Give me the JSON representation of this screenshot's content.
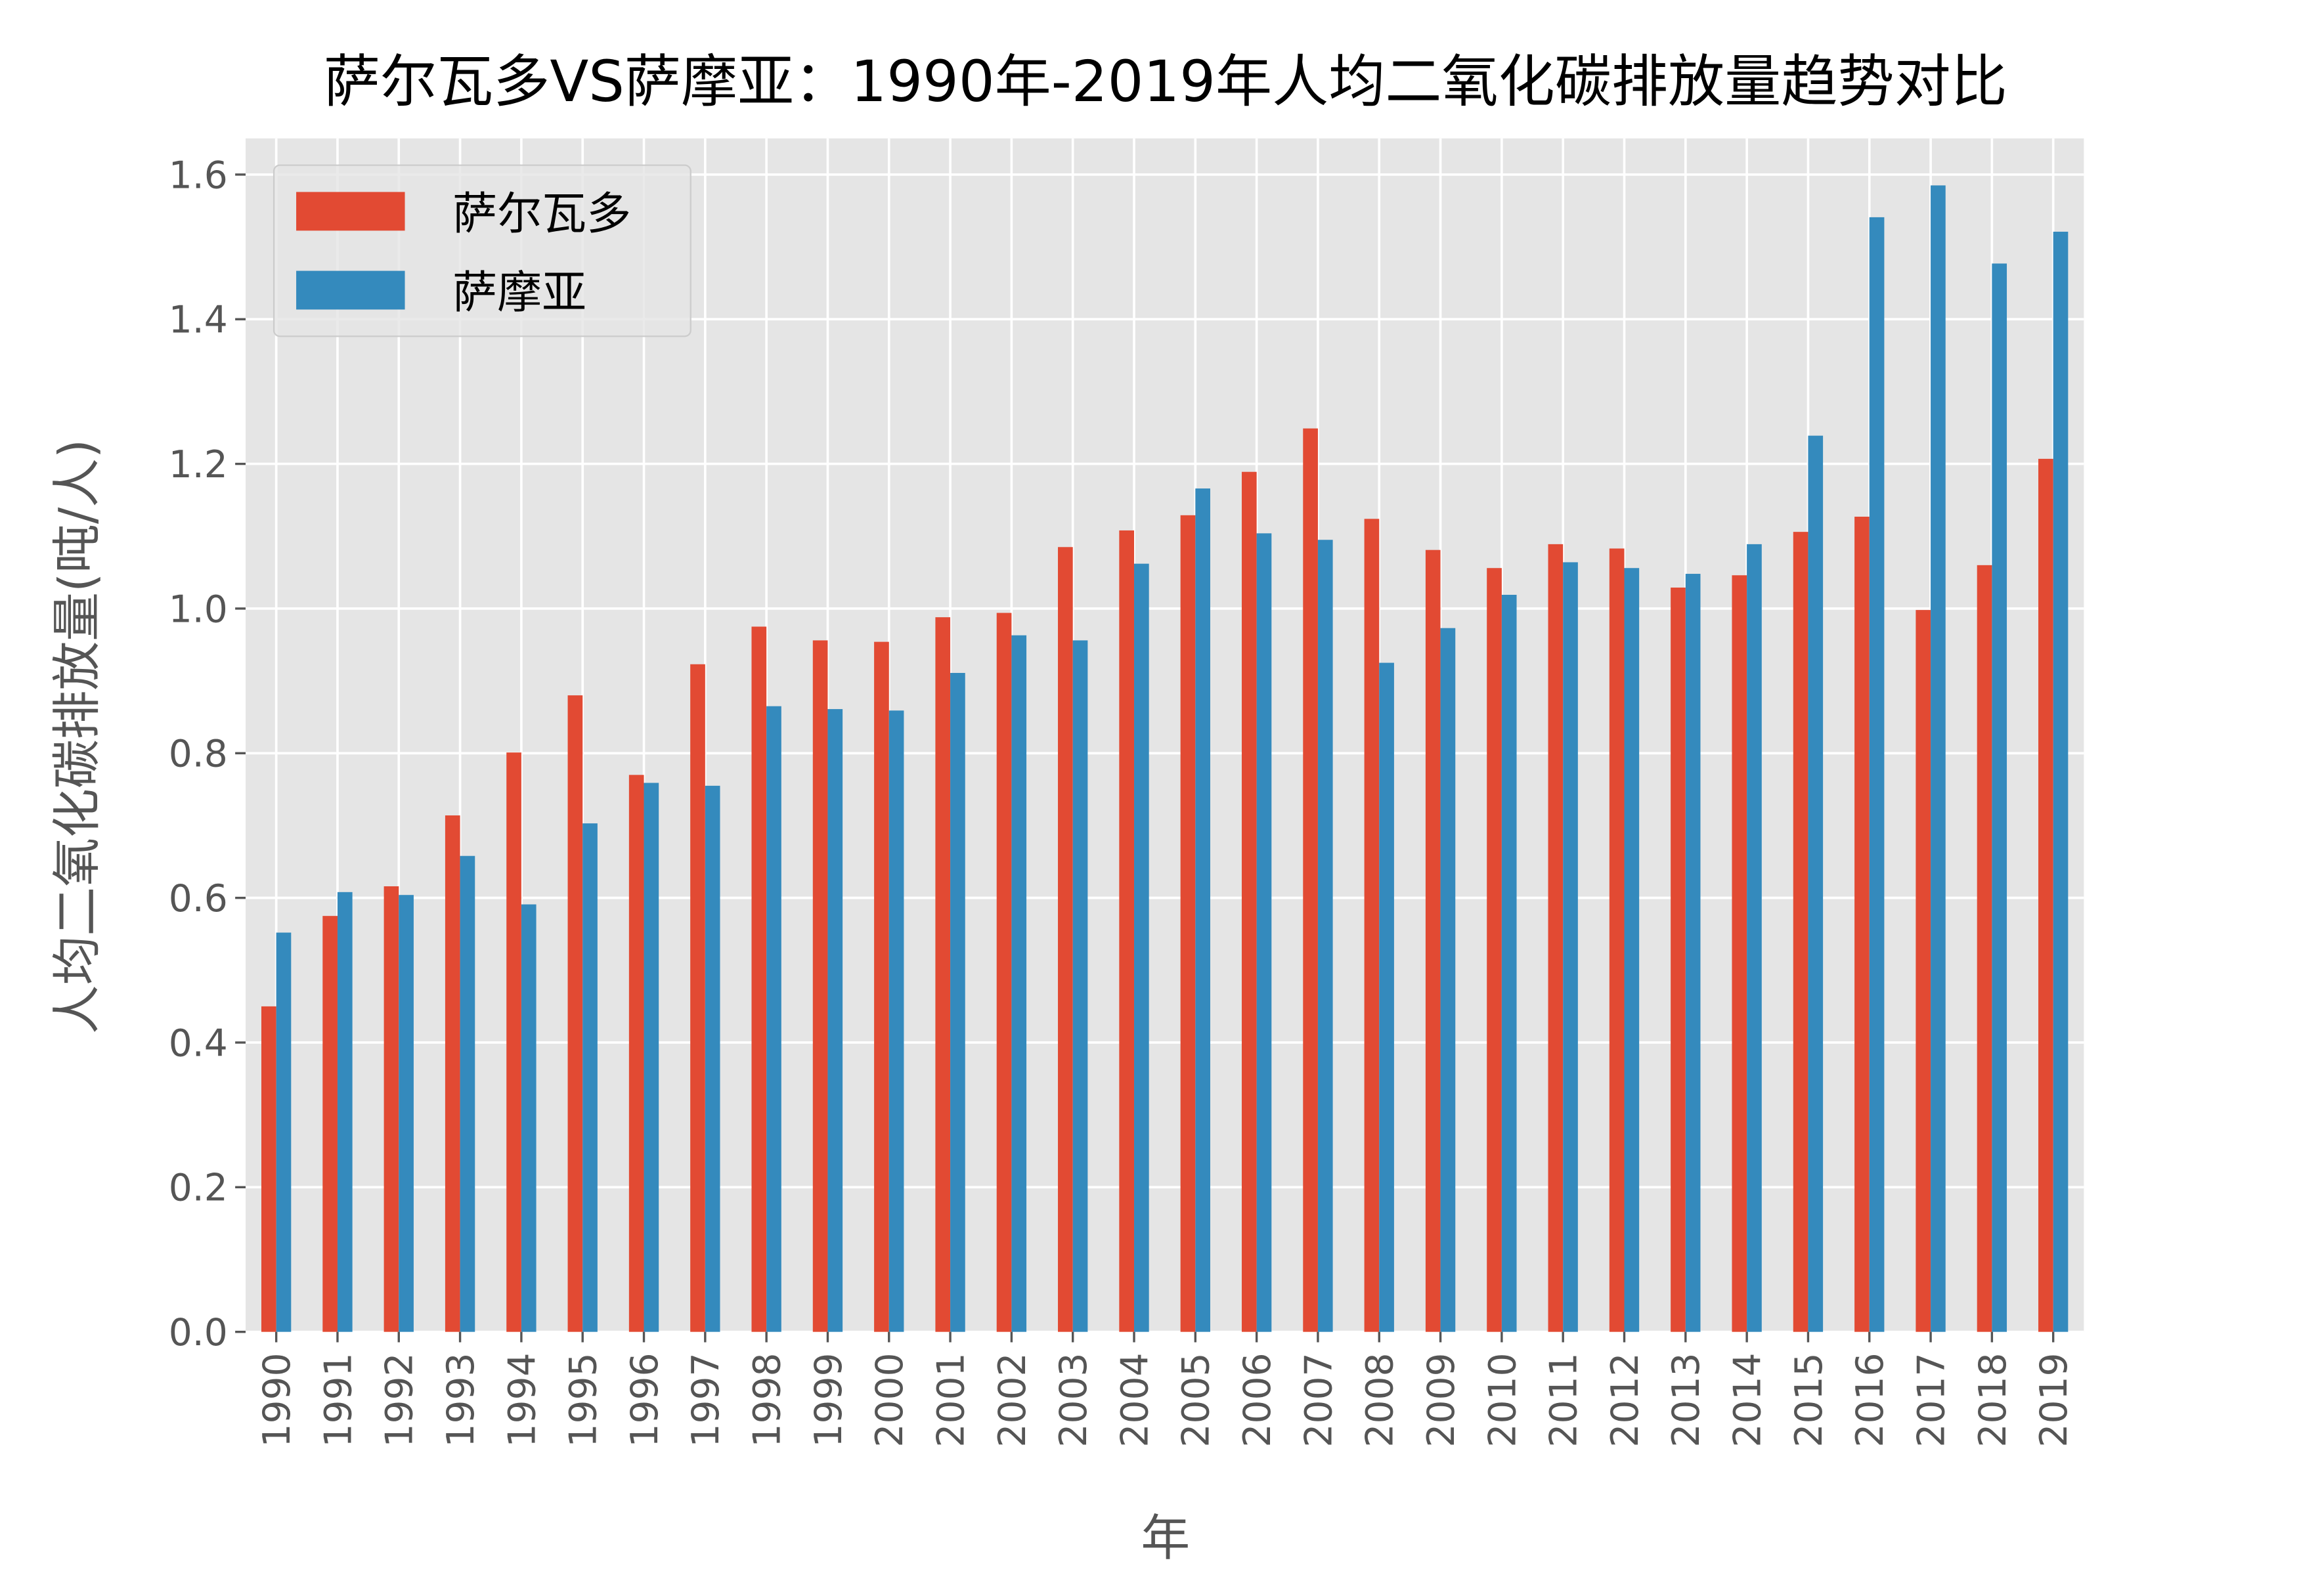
{
  "chart_data": {
    "type": "bar",
    "title": "萨尔瓦多VS萨摩亚：1990年-2019年人均二氧化碳排放量趋势对比",
    "xlabel": "年",
    "ylabel": "人均二氧化碳排放量(吨/人)",
    "ylim": [
      0,
      1.65
    ],
    "yticks": [
      "0.0",
      "0.2",
      "0.4",
      "0.6",
      "0.8",
      "1.0",
      "1.2",
      "1.4",
      "1.6"
    ],
    "grid": true,
    "legend_position": "top-left",
    "categories": [
      "1990",
      "1991",
      "1992",
      "1993",
      "1994",
      "1995",
      "1996",
      "1997",
      "1998",
      "1999",
      "2000",
      "2001",
      "2002",
      "2003",
      "2004",
      "2005",
      "2006",
      "2007",
      "2008",
      "2009",
      "2010",
      "2011",
      "2012",
      "2013",
      "2014",
      "2015",
      "2016",
      "2017",
      "2018",
      "2019"
    ],
    "series": [
      {
        "name": "萨尔瓦多",
        "color": "#E24A33",
        "values": [
          0.45,
          0.575,
          0.616,
          0.714,
          0.801,
          0.88,
          0.77,
          0.923,
          0.975,
          0.956,
          0.954,
          0.988,
          0.994,
          1.085,
          1.108,
          1.129,
          1.189,
          1.249,
          1.124,
          1.081,
          1.056,
          1.089,
          1.083,
          1.029,
          1.046,
          1.106,
          1.127,
          0.998,
          1.06,
          1.207
        ]
      },
      {
        "name": "萨摩亚",
        "color": "#348ABD",
        "values": [
          0.552,
          0.608,
          0.604,
          0.658,
          0.591,
          0.703,
          0.759,
          0.755,
          0.865,
          0.861,
          0.859,
          0.911,
          0.963,
          0.956,
          1.062,
          1.166,
          1.104,
          1.095,
          0.925,
          0.973,
          1.019,
          1.064,
          1.056,
          1.048,
          1.089,
          1.239,
          1.541,
          1.585,
          1.477,
          1.521
        ]
      }
    ]
  }
}
